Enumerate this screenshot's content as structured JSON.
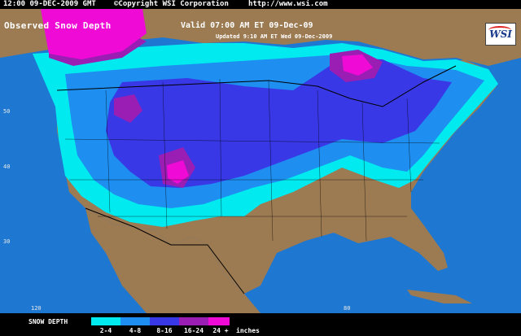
{
  "header": {
    "timestamp": "12:00 09-DEC-2009 GMT",
    "copyright": "©Copyright WSI Corporation",
    "url": "http://www.wsi.com"
  },
  "map": {
    "title": "Observed Snow Depth",
    "valid": "Valid 07:00 AM ET 09-Dec-09",
    "updated": "Updated 9:10 AM ET Wed 09-Dec-2009",
    "logo": "WSI",
    "latitude_labels": [
      "50",
      "40",
      "30"
    ],
    "longitude_labels": [
      "120",
      "80"
    ],
    "colors": {
      "water": "#1e78d2",
      "land": "#9c7a52",
      "borders": "#000000"
    }
  },
  "legend": {
    "title": "SNOW DEPTH",
    "units": "inches",
    "categories": [
      {
        "label": "2-4",
        "color": "#00eaf0"
      },
      {
        "label": "4-8",
        "color": "#1e8ef0"
      },
      {
        "label": "8-16",
        "color": "#3838e6"
      },
      {
        "label": "16-24",
        "color": "#9a1eb4"
      },
      {
        "label": "24 +",
        "color": "#f00ad6"
      }
    ]
  }
}
